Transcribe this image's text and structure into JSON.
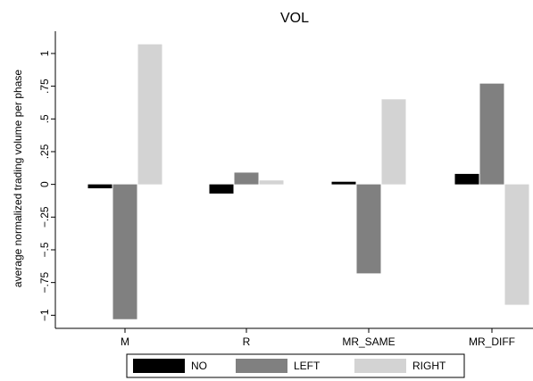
{
  "chart_data": {
    "type": "bar",
    "title": "VOL",
    "xlabel": "",
    "ylabel": "average normalized trading volume per phase",
    "categories": [
      "M",
      "R",
      "MR_SAME",
      "MR_DIFF"
    ],
    "series": [
      {
        "name": "NO",
        "color": "#000000",
        "values": [
          -0.03,
          -0.07,
          0.02,
          0.08
        ]
      },
      {
        "name": "LEFT",
        "color": "#808080",
        "values": [
          -1.03,
          0.09,
          -0.68,
          0.77
        ]
      },
      {
        "name": "RIGHT",
        "color": "#d3d3d3",
        "values": [
          1.07,
          0.03,
          0.65,
          -0.92
        ]
      }
    ],
    "ylim": [
      -1.1,
      1.17
    ],
    "yticks": [
      -1,
      -0.75,
      -0.5,
      -0.25,
      0,
      0.25,
      0.5,
      0.75,
      1
    ],
    "ytick_labels": [
      "−1",
      "−.75",
      "−.5",
      "−.25",
      "0",
      ".25",
      ".5",
      ".75",
      "1"
    ],
    "grid": false,
    "legend_position": "bottom"
  }
}
